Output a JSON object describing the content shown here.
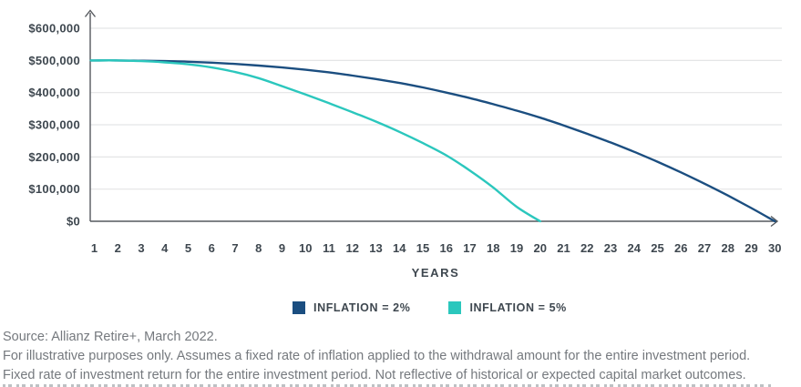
{
  "chart_data": {
    "type": "line",
    "title": "",
    "xlabel": "YEARS",
    "ylabel": "",
    "x": [
      1,
      2,
      3,
      4,
      5,
      6,
      7,
      8,
      9,
      10,
      11,
      12,
      13,
      14,
      15,
      16,
      17,
      18,
      19,
      20,
      21,
      22,
      23,
      24,
      25,
      26,
      27,
      28,
      29,
      30
    ],
    "xlim": [
      1,
      30
    ],
    "ylim": [
      0,
      620000
    ],
    "y_ticks": [
      0,
      100000,
      200000,
      300000,
      400000,
      500000,
      600000
    ],
    "y_tick_labels": [
      "$0",
      "$100,000",
      "$200,000",
      "$300,000",
      "$400,000",
      "$500,000",
      "$600,000"
    ],
    "grid": "horizontal",
    "legend_position": "bottom",
    "series": [
      {
        "name": "INFLATION = 2%",
        "color": "#1B4E80",
        "start_value": 500000,
        "depleted_at_year": 30,
        "values": [
          500000,
          500000,
          499000,
          498000,
          496000,
          493000,
          489000,
          484000,
          478000,
          471000,
          463000,
          453000,
          442000,
          430000,
          416000,
          400000,
          383000,
          364000,
          344000,
          322000,
          298000,
          272000,
          245000,
          216000,
          185000,
          152000,
          117000,
          80000,
          41000,
          0
        ]
      },
      {
        "name": "INFLATION = 5%",
        "color": "#2BC7BD",
        "start_value": 500000,
        "depleted_at_year": 20,
        "values": [
          500000,
          500000,
          498000,
          494000,
          488000,
          478000,
          464000,
          445000,
          420000,
          394000,
          367000,
          339000,
          310000,
          278000,
          243000,
          205000,
          158000,
          105000,
          45000,
          0
        ]
      }
    ]
  },
  "footer": {
    "lines": [
      "Source: Allianz Retire+, March 2022.",
      "For illustrative purposes only. Assumes a fixed rate of inflation applied to the withdrawal amount for the entire investment period.",
      "Fixed rate of investment return for the entire investment period. Not reflective of historical or expected capital market outcomes."
    ]
  },
  "colors": {
    "background": "#ffffff",
    "axis": "#55595e",
    "grid": "#e4e5e6",
    "tick_label": "#3e474f",
    "footer_text": "#75797e",
    "series_2pct": "#1B4E80",
    "series_5pct": "#2BC7BD"
  }
}
